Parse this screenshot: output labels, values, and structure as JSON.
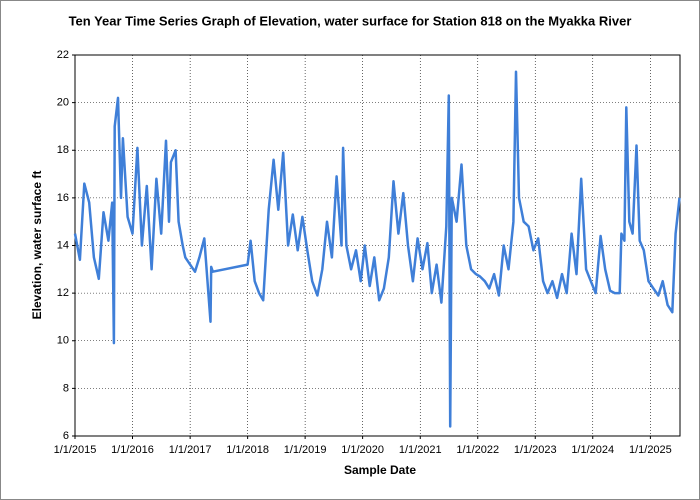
{
  "chart_data": {
    "type": "line",
    "title": "Ten Year Time Series Graph of Elevation, water surface for Station 818 on the Myakka River",
    "x_label": "Sample Date",
    "y_label": "Elevation, water surface ft",
    "xlim": [
      "1/1/2015",
      "7/8/2025"
    ],
    "xticks": [
      "1/1/2015",
      "1/1/2016",
      "1/1/2017",
      "1/1/2018",
      "1/1/2019",
      "1/1/2020",
      "1/1/2021",
      "1/1/2022",
      "1/1/2023",
      "1/1/2024",
      "1/1/2025"
    ],
    "ylim": [
      6,
      22
    ],
    "yticks": [
      6,
      8,
      10,
      12,
      14,
      16,
      18,
      20,
      22
    ],
    "grid": true,
    "x": [
      "1/1/2015",
      "2/1/2015",
      "3/1/2015",
      "4/1/2015",
      "5/1/2015",
      "6/1/2015",
      "7/1/2015",
      "8/1/2015",
      "8/25/2015",
      "9/5/2015",
      "9/10/2015",
      "10/1/2015",
      "10/20/2015",
      "11/1/2015",
      "12/1/2015",
      "1/1/2016",
      "2/1/2016",
      "3/1/2016",
      "4/1/2016",
      "5/1/2016",
      "6/1/2016",
      "7/1/2016",
      "8/1/2016",
      "8/20/2016",
      "9/1/2016",
      "10/1/2016",
      "10/20/2016",
      "11/15/2016",
      "12/1/2016",
      "1/1/2017",
      "2/1/2017",
      "3/1/2017",
      "4/1/2017",
      "4/20/2017",
      "5/10/2017",
      "5/15/2017",
      "5/25/2017",
      "1/1/2018",
      "1/20/2018",
      "2/15/2018",
      "3/15/2018",
      "4/10/2018",
      "5/15/2018",
      "6/15/2018",
      "7/15/2018",
      "8/15/2018",
      "9/15/2018",
      "10/15/2018",
      "11/15/2018",
      "12/15/2018",
      "1/15/2019",
      "2/15/2019",
      "3/20/2019",
      "4/20/2019",
      "5/20/2019",
      "6/20/2019",
      "7/20/2019",
      "8/20/2019",
      "8/30/2019",
      "9/20/2019",
      "10/20/2019",
      "11/20/2019",
      "12/20/2019",
      "1/15/2020",
      "2/15/2020",
      "3/15/2020",
      "4/15/2020",
      "5/15/2020",
      "6/15/2020",
      "7/15/2020",
      "8/15/2020",
      "9/15/2020",
      "10/15/2020",
      "11/15/2020",
      "12/15/2020",
      "1/15/2021",
      "2/15/2021",
      "3/15/2021",
      "4/15/2021",
      "5/15/2021",
      "6/15/2021",
      "7/1/2021",
      "7/10/2021",
      "7/20/2021",
      "8/20/2021",
      "9/20/2021",
      "10/20/2021",
      "11/20/2021",
      "12/20/2021",
      "1/15/2022",
      "2/15/2022",
      "3/15/2022",
      "4/15/2022",
      "5/15/2022",
      "6/15/2022",
      "7/15/2022",
      "8/15/2022",
      "9/1/2022",
      "9/20/2022",
      "10/20/2022",
      "11/20/2022",
      "12/20/2022",
      "1/20/2023",
      "2/20/2023",
      "3/20/2023",
      "4/20/2023",
      "5/20/2023",
      "6/20/2023",
      "7/20/2023",
      "8/20/2023",
      "9/20/2023",
      "10/20/2023",
      "11/20/2023",
      "12/20/2023",
      "1/20/2024",
      "2/20/2024",
      "3/20/2024",
      "4/20/2024",
      "5/20/2024",
      "6/20/2024",
      "7/1/2024",
      "7/20/2024",
      "8/1/2024",
      "8/20/2024",
      "9/10/2024",
      "10/5/2024",
      "10/25/2024",
      "11/20/2024",
      "12/20/2024",
      "1/20/2025",
      "2/20/2025",
      "3/20/2025",
      "4/20/2025",
      "5/20/2025",
      "6/10/2025",
      "7/5/2025"
    ],
    "series": [
      {
        "color": "#3f7fd8",
        "values": [
          14.5,
          13.4,
          16.6,
          15.8,
          13.5,
          12.6,
          15.4,
          14.2,
          15.8,
          9.9,
          19,
          20.2,
          16,
          18.5,
          15.2,
          14.5,
          18.1,
          14,
          16.5,
          13,
          16.8,
          14.5,
          18.4,
          15,
          17.5,
          18,
          15,
          14,
          13.5,
          13.2,
          12.9,
          13.5,
          14.3,
          12.6,
          10.8,
          13.1,
          12.9,
          13.2,
          14.2,
          12.5,
          12,
          11.7,
          15.5,
          17.6,
          15.5,
          17.9,
          14,
          15.3,
          13.8,
          15.2,
          13.8,
          12.5,
          11.9,
          13,
          15,
          13.5,
          16.9,
          14,
          18.1,
          14,
          13,
          13.8,
          12.5,
          14,
          12.3,
          13.5,
          11.7,
          12.2,
          13.5,
          16.7,
          14.5,
          16.2,
          14,
          12.5,
          14.3,
          13,
          14.1,
          12,
          13.2,
          11.6,
          14.8,
          20.3,
          6.4,
          16,
          15,
          17.4,
          14,
          13,
          12.8,
          12.7,
          12.5,
          12.2,
          12.8,
          11.9,
          14,
          13,
          15,
          21.3,
          16,
          15,
          14.8,
          13.8,
          14.3,
          12.5,
          12,
          12.5,
          11.8,
          12.8,
          12,
          14.5,
          12.8,
          16.8,
          13,
          12.5,
          12,
          14.4,
          13,
          12.1,
          12,
          12,
          14.5,
          14.2,
          19.8,
          15,
          14.5,
          18.2,
          14.2,
          13.8,
          12.5,
          12.2,
          11.9,
          12.5,
          11.5,
          11.2,
          14.5,
          16
        ]
      }
    ]
  }
}
